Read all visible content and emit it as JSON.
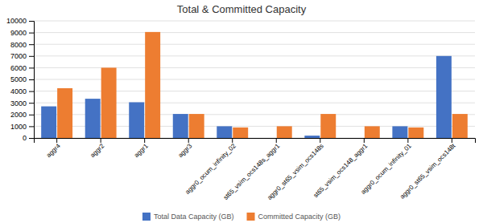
{
  "chart_data": {
    "type": "bar",
    "title": "Total & Committed Capacity",
    "categories": [
      "aggr4",
      "aggr2",
      "aggr1",
      "aggr3",
      "aggr0_ocum_infinity_02",
      "st65_vsim_ocs148s_aggr1",
      "aggr0_st65_vsim_ocs148s",
      "st65_vsim_ocs148_aggr1",
      "aggr0_ocum_infinity_01",
      "aggr0_st65_vsim_ocs148t"
    ],
    "series": [
      {
        "name": "Total Data Capacity (GB)",
        "color": "#4472c4",
        "values": [
          2700,
          3350,
          3050,
          2050,
          1000,
          0,
          200,
          0,
          1000,
          7000
        ]
      },
      {
        "name": "Committed Capacity (GB)",
        "color": "#ed7d31",
        "values": [
          4250,
          6000,
          9050,
          2050,
          900,
          1000,
          2050,
          1000,
          900,
          2050
        ]
      }
    ],
    "ylim": [
      0,
      10000
    ],
    "yticks": [
      0,
      1000,
      2000,
      3000,
      4000,
      5000,
      6000,
      7000,
      8000,
      9000,
      10000
    ],
    "grid": true,
    "legend": "bottom"
  }
}
